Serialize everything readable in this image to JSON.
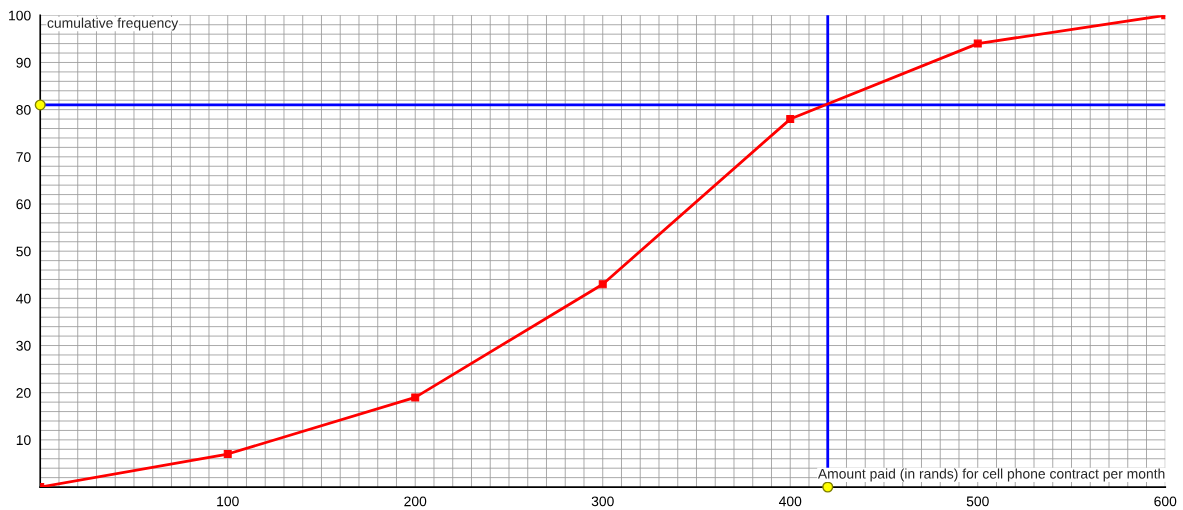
{
  "chart_data": {
    "type": "line",
    "xlabel": "Amount paid (in rands) for cell phone contract per month",
    "ylabel": "cumulative frequency",
    "x": [
      0,
      100,
      200,
      300,
      400,
      500,
      600
    ],
    "series": [
      {
        "color": "#ff0000",
        "values": [
          0,
          7,
          19,
          43,
          78,
          94,
          100
        ]
      }
    ],
    "marker": "square",
    "line_style": "solid",
    "xlim": [
      0,
      600
    ],
    "ylim": [
      0,
      100
    ],
    "xticks": [
      {
        "value": 10,
        "label": null
      },
      {
        "value": 20,
        "label": null
      },
      {
        "value": 30,
        "label": null
      },
      {
        "value": 40,
        "label": null
      },
      {
        "value": 50,
        "label": null
      },
      {
        "value": 60,
        "label": null
      },
      {
        "value": 70,
        "label": null
      },
      {
        "value": 80,
        "label": null
      },
      {
        "value": 90,
        "label": null
      },
      100,
      {
        "value": 110,
        "label": null
      },
      {
        "value": 120,
        "label": null
      },
      {
        "value": 130,
        "label": null
      },
      {
        "value": 140,
        "label": null
      },
      {
        "value": 150,
        "label": null
      },
      {
        "value": 160,
        "label": null
      },
      {
        "value": 170,
        "label": null
      },
      {
        "value": 180,
        "label": null
      },
      {
        "value": 190,
        "label": null
      },
      200,
      {
        "value": 210,
        "label": null
      },
      {
        "value": 220,
        "label": null
      },
      {
        "value": 230,
        "label": null
      },
      {
        "value": 240,
        "label": null
      },
      {
        "value": 250,
        "label": null
      },
      {
        "value": 260,
        "label": null
      },
      {
        "value": 270,
        "label": null
      },
      {
        "value": 280,
        "label": null
      },
      {
        "value": 290,
        "label": null
      },
      300,
      {
        "value": 310,
        "label": null
      },
      {
        "value": 320,
        "label": null
      },
      {
        "value": 330,
        "label": null
      },
      {
        "value": 340,
        "label": null
      },
      {
        "value": 350,
        "label": null
      },
      {
        "value": 360,
        "label": null
      },
      {
        "value": 370,
        "label": null
      },
      {
        "value": 380,
        "label": null
      },
      {
        "value": 390,
        "label": null
      },
      400,
      {
        "value": 410,
        "label": null
      },
      {
        "value": 420,
        "label": null
      },
      {
        "value": 430,
        "label": null
      },
      {
        "value": 440,
        "label": null
      },
      {
        "value": 450,
        "label": null
      },
      {
        "value": 460,
        "label": null
      },
      {
        "value": 470,
        "label": null
      },
      {
        "value": 480,
        "label": null
      },
      {
        "value": 490,
        "label": null
      },
      500,
      {
        "value": 510,
        "label": null
      },
      {
        "value": 520,
        "label": null
      },
      {
        "value": 530,
        "label": null
      },
      {
        "value": 540,
        "label": null
      },
      {
        "value": 550,
        "label": null
      },
      {
        "value": 560,
        "label": null
      },
      {
        "value": 570,
        "label": null
      },
      {
        "value": 580,
        "label": null
      },
      {
        "value": 590,
        "label": null
      },
      600
    ],
    "yticks": [
      {
        "value": 2,
        "label": null
      },
      {
        "value": 4,
        "label": null
      },
      {
        "value": 6,
        "label": null
      },
      {
        "value": 8,
        "label": null
      },
      10,
      {
        "value": 12,
        "label": null
      },
      {
        "value": 14,
        "label": null
      },
      {
        "value": 16,
        "label": null
      },
      {
        "value": 18,
        "label": null
      },
      20,
      {
        "value": 22,
        "label": null
      },
      {
        "value": 24,
        "label": null
      },
      {
        "value": 26,
        "label": null
      },
      {
        "value": 28,
        "label": null
      },
      30,
      {
        "value": 32,
        "label": null
      },
      {
        "value": 34,
        "label": null
      },
      {
        "value": 36,
        "label": null
      },
      {
        "value": 38,
        "label": null
      },
      40,
      {
        "value": 42,
        "label": null
      },
      {
        "value": 44,
        "label": null
      },
      {
        "value": 46,
        "label": null
      },
      {
        "value": 48,
        "label": null
      },
      50,
      {
        "value": 52,
        "label": null
      },
      {
        "value": 54,
        "label": null
      },
      {
        "value": 56,
        "label": null
      },
      {
        "value": 58,
        "label": null
      },
      60,
      {
        "value": 62,
        "label": null
      },
      {
        "value": 64,
        "label": null
      },
      {
        "value": 66,
        "label": null
      },
      {
        "value": 68,
        "label": null
      },
      70,
      {
        "value": 72,
        "label": null
      },
      {
        "value": 74,
        "label": null
      },
      {
        "value": 76,
        "label": null
      },
      {
        "value": 78,
        "label": null
      },
      80,
      {
        "value": 82,
        "label": null
      },
      {
        "value": 84,
        "label": null
      },
      {
        "value": 86,
        "label": null
      },
      {
        "value": 88,
        "label": null
      },
      90,
      {
        "value": 92,
        "label": null
      },
      {
        "value": 94,
        "label": null
      },
      {
        "value": 96,
        "label": null
      },
      {
        "value": 98,
        "label": null
      },
      100
    ],
    "grid": true,
    "ref_lines": [
      {
        "axis": "x",
        "value": 420,
        "color": "#0000ff"
      },
      {
        "axis": "y",
        "value": 81,
        "color": "#0000ff"
      }
    ]
  }
}
